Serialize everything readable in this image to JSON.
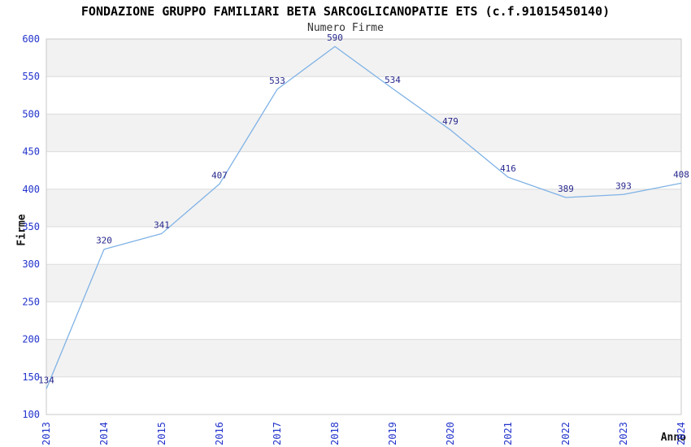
{
  "chart_data": {
    "type": "line",
    "title": "FONDAZIONE GRUPPO FAMILIARI BETA SARCOGLICANOPATIE ETS (c.f.91015450140)",
    "subtitle": "Numero Firme",
    "xlabel": "Anno",
    "ylabel": "Firme",
    "categories": [
      "2013",
      "2014",
      "2015",
      "2016",
      "2017",
      "2018",
      "2019",
      "2020",
      "2021",
      "2022",
      "2023",
      "2024"
    ],
    "values": [
      134,
      320,
      341,
      407,
      533,
      590,
      534,
      479,
      416,
      389,
      393,
      408
    ],
    "ylim": [
      100,
      600
    ],
    "ytick_step": 50,
    "grid": true,
    "legend": "none",
    "data_labels": true,
    "colors": {
      "line": "#7fb2e5",
      "data_label": "#28288e",
      "tick_label": "#2233cc",
      "band_gray": "#f2f2f2",
      "band_white": "#ffffff",
      "gridline": "#dcdcdc",
      "plot_border": "#c8c8c8",
      "title": "#000000",
      "subtitle": "#333333",
      "axis_title": "#111111",
      "background": "#ffffff"
    }
  }
}
